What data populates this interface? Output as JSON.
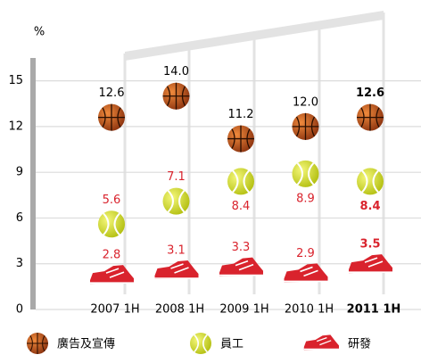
{
  "chart_data": {
    "type": "icon-scatter",
    "y_label": "%",
    "categories": [
      "2007 1H",
      "2008 1H",
      "2009 1H",
      "2010 1H",
      "2011 1H"
    ],
    "series": [
      {
        "name": "廣告及宣傳",
        "color": "#c9561d",
        "values": [
          12.6,
          14.0,
          11.2,
          12.0,
          12.6
        ],
        "value_labels": [
          "12.6",
          "14.0",
          "11.2",
          "12.0",
          "12.6"
        ]
      },
      {
        "name": "員工",
        "color": "#d7e021",
        "values": [
          5.6,
          7.1,
          8.4,
          8.9,
          8.4
        ]
      },
      {
        "name": "研發",
        "color": "#d9232d",
        "values": [
          2.8,
          3.1,
          3.3,
          2.9,
          3.5
        ]
      }
    ],
    "ylim": [
      0,
      16.5
    ],
    "yticks": [
      0,
      3,
      6,
      9,
      12,
      15
    ],
    "grid": true
  }
}
